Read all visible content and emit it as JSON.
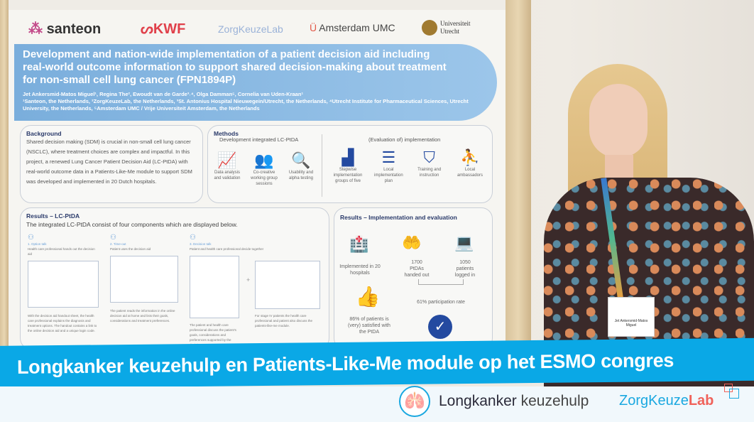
{
  "poster": {
    "logos": [
      "santeon",
      "KWF",
      "ZorgKeuzeLab",
      "Amsterdam UMC",
      "Universiteit Utrecht"
    ],
    "title": "Development and nation-wide implementation of a patient decision aid including real-world outcome information to support shared decision-making about treatment for non-small cell lung cancer (FPN1894P)",
    "authors": "Jet Ankersmid-Matos Miguel¹, Regina The², Ewoudt van de Garde³˒⁴, Olga Damman⁵, Cornelia van Uden-Kraan¹",
    "affiliations": "¹Santeon, the Netherlands, ²ZorgKeuzeLab, the Netherlands, ³St. Antonius Hospital Nieuwegein/Utrecht, the Netherlands, ⁴Utrecht Institute for Pharmaceutical Sciences, Utrecht University, the Netherlands, ⁵Amsterdam UMC / Vrije Universiteit Amsterdam, the Netherlands",
    "background": {
      "heading": "Background",
      "text": "Shared decision making (SDM) is crucial in non-small cell lung cancer (NSCLC), where treatment choices are complex and impactful. In this project, a renewed Lung Cancer Patient Decision Aid (LC-PtDA) with real-world outcome data in a Patients-Like-Me module to support SDM was developed and implemented in 20 Dutch hospitals."
    },
    "methods": {
      "heading": "Methods",
      "dev_heading": "Development integrated LC-PtDA",
      "dev_items": [
        {
          "icon": "line-chart-icon",
          "label": "Data analysis and validation"
        },
        {
          "icon": "group-icon",
          "label": "Co-creative working group sessions"
        },
        {
          "icon": "magnifier-pulse-icon",
          "label": "Usability and alpha testing"
        }
      ],
      "impl_heading": "(Evaluation of) implementation",
      "impl_items": [
        {
          "icon": "stairs-icon",
          "label": "Stepwise implementation groups of five"
        },
        {
          "icon": "checklist-icon",
          "label": "Local implementation plan"
        },
        {
          "icon": "presentation-icon",
          "label": "Training and instruction"
        },
        {
          "icon": "podium-icon",
          "label": "Local ambassadors"
        }
      ]
    },
    "results_ptda": {
      "heading": "Results – LC-PtDA",
      "intro": "The integrated LC-PtDA consist of four components which are displayed below.",
      "steps": [
        {
          "title": "1. Option talk",
          "desc": "Health care professional hands out the decision aid",
          "caption": "With the decision aid handout sheet, the health care professional explains the diagnosis and treatment options. The handout contains a link to the online decision aid and a unique login code."
        },
        {
          "title": "2. Time-out",
          "desc": "Patient uses the decision aid",
          "caption": "The patient reads the information in the online decision aid at home and lists their goals, considerations and treatment preferences."
        },
        {
          "title": "3. Decision talk",
          "desc": "Patient and health care professional decide together",
          "caption": "The patient and health care professional discuss the patient's goals, considerations and preferences supported by the decision"
        },
        {
          "title": "",
          "desc": "",
          "caption": "For stage IV patients the health care professional and patient also discuss the patients-like-me module."
        }
      ],
      "plus": "+"
    },
    "results_impl": {
      "heading": "Results – Implementation and evaluation",
      "hospitals": "Implemented in 20 hospitals",
      "handed_out": "1700 PtDAs handed out",
      "logged_in": "1050 patients logged in",
      "participation": "61% participation rate",
      "satisfied": "86% of patients is (very) satisfied with the PtDA"
    }
  },
  "badge": {
    "name": "Jet Ankersmid-Matos Miguel"
  },
  "banner": {
    "text": "Longkanker keuzehulp en Patients-Like-Me module op het ESMO congres"
  },
  "footer": {
    "brand1_bold": "Longkanker",
    "brand1_light": " keuzehulp",
    "brand2_main": "ZorgKeuze",
    "brand2_accent": "Lab"
  },
  "colors": {
    "banner": "#0aa8e6",
    "poster_title_band": "#8bbbe4",
    "poster_icons": "#244aa0",
    "lab_accent": "#f0625a"
  }
}
